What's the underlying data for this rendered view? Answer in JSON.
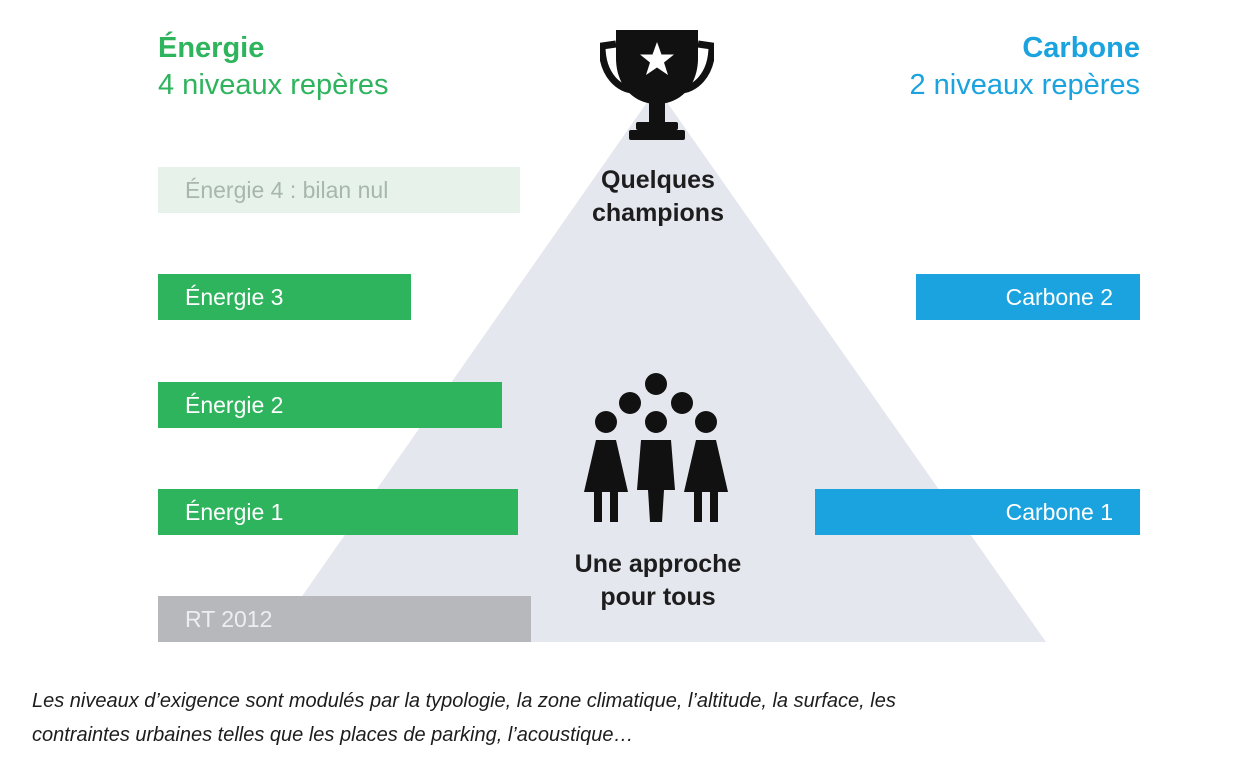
{
  "energy": {
    "title": "Énergie",
    "subtitle": "4 niveaux repères",
    "levels": [
      "Énergie 4 : bilan nul",
      "Énergie 3",
      "Énergie 2",
      "Énergie 1"
    ],
    "baseline": "RT 2012",
    "color": "#2fb45e"
  },
  "carbon": {
    "title": "Carbone",
    "subtitle": "2 niveaux repères",
    "levels": [
      "Carbone 2",
      "Carbone 1"
    ],
    "color": "#1aa3df"
  },
  "pyramid": {
    "top_label_line1": "Quelques",
    "top_label_line2": "champions",
    "bottom_label_line1": "Une approche",
    "bottom_label_line2": "pour tous",
    "top_icon": "trophy-icon",
    "bottom_icon": "people-group-icon"
  },
  "caption": {
    "line1": "Les niveaux d’exigence  sont modulés par la typologie, la zone climatique, l’altitude, la surface, les",
    "line2": "contraintes urbaines telles que les places de parking, l’acoustique…"
  }
}
